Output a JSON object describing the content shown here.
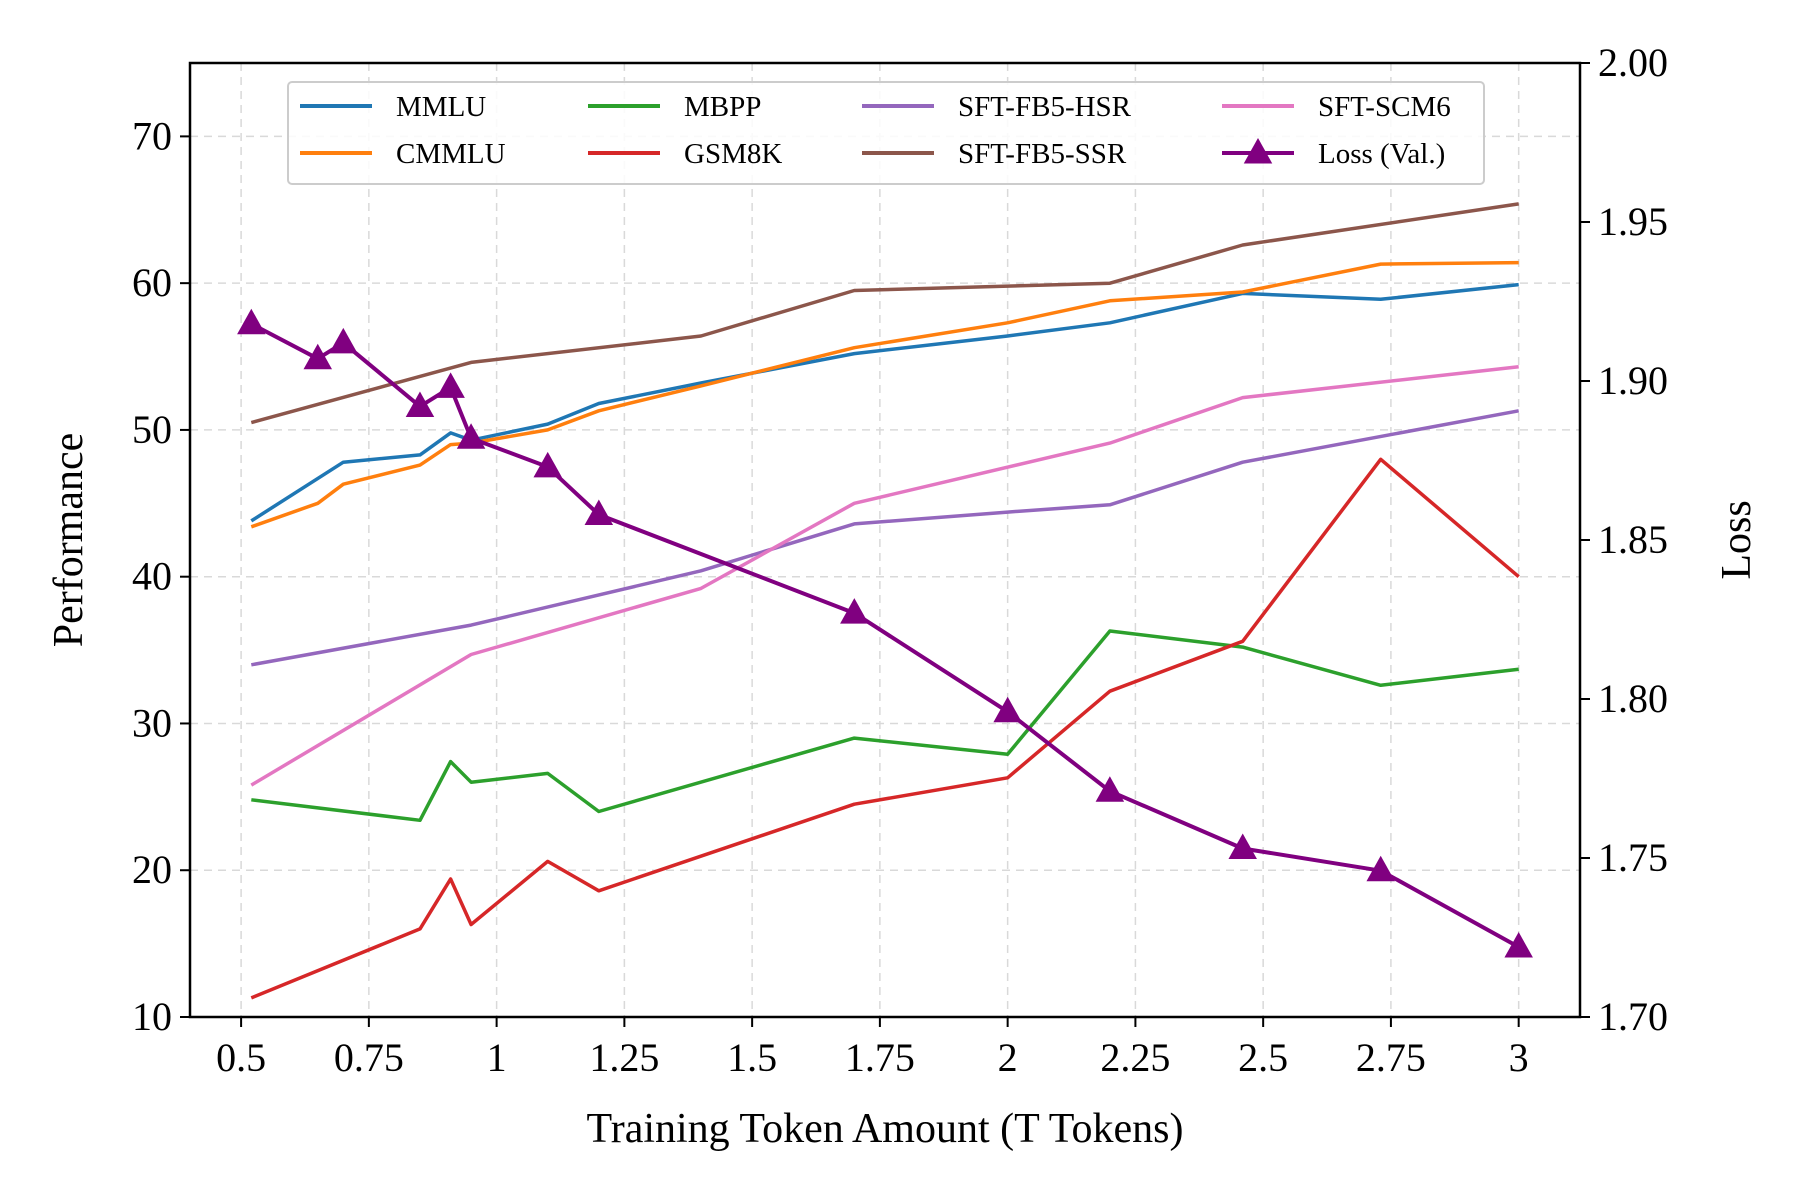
{
  "chart_data": {
    "type": "line",
    "xlabel": "Training Token Amount (T Tokens)",
    "ylabel": "Performance",
    "y2label": "Loss",
    "xlim": [
      0.4,
      3.12
    ],
    "ylim": [
      10,
      75
    ],
    "y2lim": [
      1.7,
      2.0
    ],
    "xticks": [
      0.5,
      0.75,
      1,
      1.25,
      1.5,
      1.75,
      2,
      2.25,
      2.5,
      2.75,
      3
    ],
    "xtick_labels": [
      "0.5",
      "0.75",
      "1",
      "1.25",
      "1.5",
      "1.75",
      "2",
      "2.25",
      "2.5",
      "2.75",
      "3"
    ],
    "yticks": [
      10,
      20,
      30,
      40,
      50,
      60,
      70
    ],
    "ytick_labels": [
      "10",
      "20",
      "30",
      "40",
      "50",
      "60",
      "70"
    ],
    "y2ticks": [
      1.7,
      1.75,
      1.8,
      1.85,
      1.9,
      1.95,
      2.0
    ],
    "y2tick_labels": [
      "1.70",
      "1.75",
      "1.80",
      "1.85",
      "1.90",
      "1.95",
      "2.00"
    ],
    "grid": true,
    "legend_position": "top-center",
    "series": [
      {
        "name": "MMLU",
        "color": "#1f77b4",
        "axis": "left",
        "x": [
          0.52,
          0.7,
          0.85,
          0.91,
          0.95,
          1.1,
          1.2,
          1.4,
          1.7,
          2.0,
          2.2,
          2.46,
          2.73,
          3.0
        ],
        "y": [
          43.8,
          47.8,
          48.3,
          49.8,
          49.3,
          50.4,
          51.8,
          53.2,
          55.2,
          56.4,
          57.3,
          59.3,
          58.9,
          59.9
        ]
      },
      {
        "name": "CMMLU",
        "color": "#ff7f0e",
        "axis": "left",
        "x": [
          0.52,
          0.65,
          0.7,
          0.85,
          0.91,
          0.95,
          1.1,
          1.2,
          1.4,
          1.7,
          2.0,
          2.2,
          2.46,
          2.73,
          3.0
        ],
        "y": [
          43.4,
          45.0,
          46.3,
          47.6,
          49.0,
          49.1,
          50.0,
          51.3,
          53.0,
          55.6,
          57.3,
          58.8,
          59.4,
          61.3,
          61.4
        ]
      },
      {
        "name": "MBPP",
        "color": "#2ca02c",
        "axis": "left",
        "x": [
          0.52,
          0.85,
          0.91,
          0.95,
          1.1,
          1.2,
          1.7,
          2.0,
          2.2,
          2.46,
          2.73,
          3.0
        ],
        "y": [
          24.8,
          23.4,
          27.4,
          26.0,
          26.6,
          24.0,
          29.0,
          27.9,
          36.3,
          35.2,
          32.6,
          33.7
        ]
      },
      {
        "name": "GSM8K",
        "color": "#d62728",
        "axis": "left",
        "x": [
          0.52,
          0.85,
          0.91,
          0.95,
          1.1,
          1.2,
          1.7,
          2.0,
          2.2,
          2.46,
          2.73,
          3.0
        ],
        "y": [
          11.3,
          16.0,
          19.4,
          16.3,
          20.6,
          18.6,
          24.5,
          26.3,
          32.2,
          35.6,
          48.0,
          40.0
        ]
      },
      {
        "name": "SFT-FB5-HSR",
        "color": "#9467bd",
        "axis": "left",
        "x": [
          0.52,
          0.95,
          1.4,
          1.7,
          2.0,
          2.2,
          2.46,
          3.0
        ],
        "y": [
          34.0,
          36.7,
          40.4,
          43.6,
          44.4,
          44.9,
          47.8,
          51.3
        ]
      },
      {
        "name": "SFT-FB5-SSR",
        "color": "#8c564b",
        "axis": "left",
        "x": [
          0.52,
          0.95,
          1.4,
          1.7,
          2.0,
          2.2,
          2.46,
          3.0
        ],
        "y": [
          50.5,
          54.6,
          56.4,
          59.5,
          59.8,
          60.0,
          62.6,
          65.4
        ]
      },
      {
        "name": "SFT-SCM6",
        "color": "#e377c2",
        "axis": "left",
        "x": [
          0.52,
          0.95,
          1.4,
          1.7,
          2.2,
          2.46,
          3.0
        ],
        "y": [
          25.8,
          34.7,
          39.2,
          45.0,
          49.1,
          52.2,
          54.3
        ]
      },
      {
        "name": "Loss (Val.)",
        "color": "#800080",
        "axis": "right",
        "marker": "triangle",
        "x": [
          0.52,
          0.65,
          0.7,
          0.85,
          0.91,
          0.95,
          1.1,
          1.2,
          1.7,
          2.0,
          2.2,
          2.46,
          2.73,
          3.0
        ],
        "y": [
          1.918,
          1.907,
          1.912,
          1.892,
          1.898,
          1.882,
          1.873,
          1.858,
          1.827,
          1.796,
          1.771,
          1.753,
          1.746,
          1.722
        ]
      }
    ]
  }
}
